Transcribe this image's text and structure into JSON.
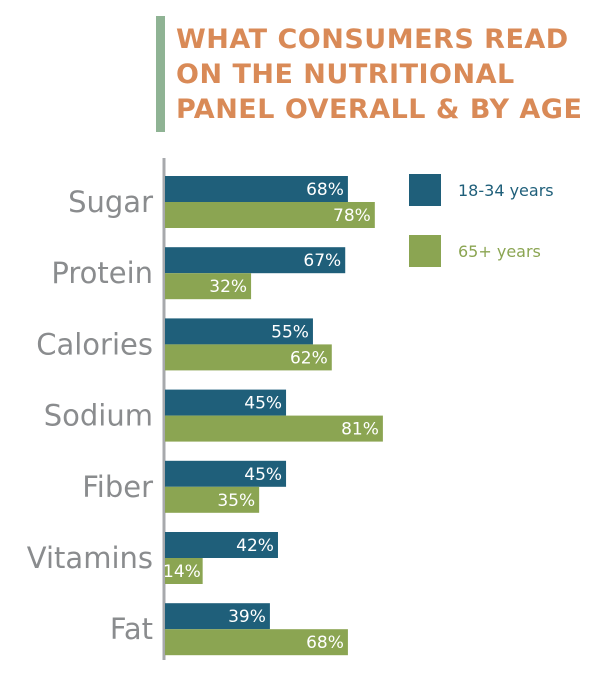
{
  "chart_data": {
    "type": "bar",
    "orientation": "horizontal",
    "title": "WHAT CONSUMERS READ ON THE NUTRITIONAL PANEL OVERALL & BY AGE",
    "title_lines": [
      "WHAT CONSUMERS READ",
      "ON THE NUTRITIONAL",
      "PANEL OVERALL & BY AGE"
    ],
    "categories": [
      "Sugar",
      "Protein",
      "Calories",
      "Sodium",
      "Fiber",
      "Vitamins",
      "Fat"
    ],
    "series": [
      {
        "name": "18-34 years",
        "color": "#1f5f7a",
        "values": [
          68,
          67,
          55,
          45,
          45,
          42,
          39
        ]
      },
      {
        "name": "65+ years",
        "color": "#8ba552",
        "values": [
          78,
          32,
          62,
          81,
          35,
          14,
          68
        ]
      }
    ],
    "value_suffix": "%",
    "xlabel": "",
    "ylabel": "",
    "xlim": [
      0,
      100
    ],
    "grid": false,
    "legend_position": "top-right",
    "colors": {
      "title": "#d98a57",
      "title_accent_bar": "#8fb394",
      "axis": "#a7a9ac",
      "category_label": "#8a8c8e",
      "legend_text_1": "#1f5f7a",
      "legend_text_2": "#8ba552"
    }
  }
}
